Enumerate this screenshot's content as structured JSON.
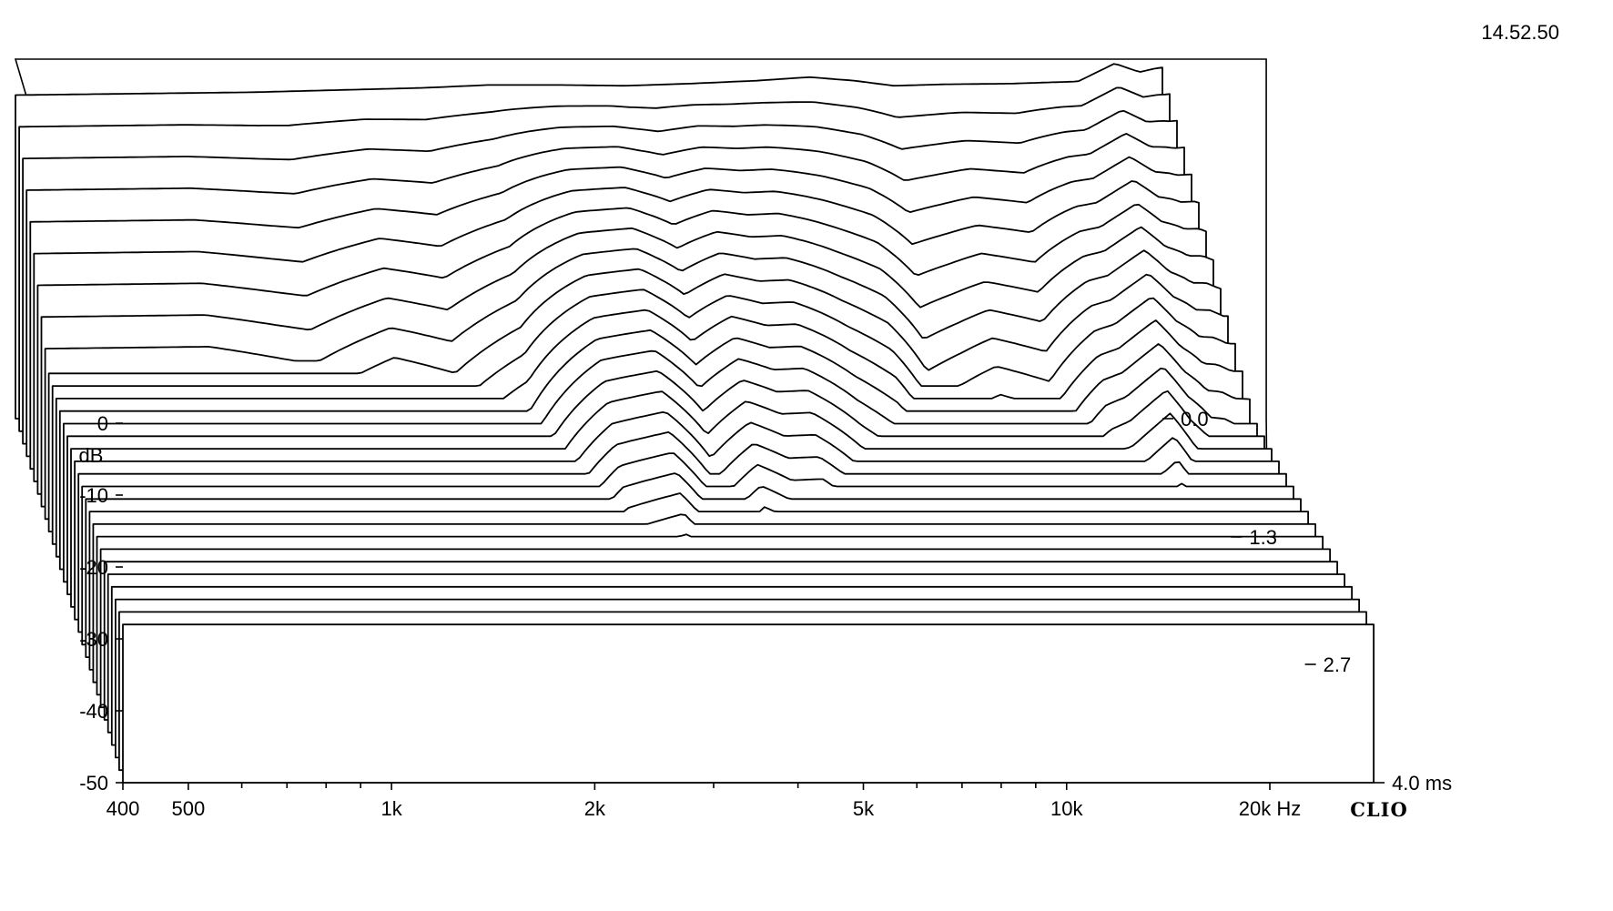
{
  "timestamp": "14.52.50",
  "brand": "CLIO",
  "chart_data": {
    "type": "waterfall",
    "x_axis": {
      "scale": "log",
      "range": [
        400,
        20000
      ],
      "tick_labels": [
        {
          "value": 400,
          "label": "400"
        },
        {
          "value": 500,
          "label": "500"
        },
        {
          "value": 1000,
          "label": "1k"
        },
        {
          "value": 2000,
          "label": "2k"
        },
        {
          "value": 5000,
          "label": "5k"
        },
        {
          "value": 10000,
          "label": "10k"
        },
        {
          "value": 20000,
          "label": "20k Hz"
        }
      ],
      "minor_ticks": [
        600,
        700,
        800,
        900,
        3000,
        4000,
        6000,
        7000,
        8000,
        9000
      ]
    },
    "y_axis": {
      "label": "dB",
      "range": [
        -50,
        0
      ],
      "tick_labels": [
        {
          "value": 0,
          "label": "0"
        },
        {
          "value": -10,
          "label": "-10"
        },
        {
          "value": -20,
          "label": "-20"
        },
        {
          "value": -30,
          "label": "-30"
        },
        {
          "value": -40,
          "label": "-40"
        },
        {
          "value": -50,
          "label": "-50"
        }
      ]
    },
    "z_axis": {
      "range": [
        0,
        4.0
      ],
      "unit": "ms",
      "tick_labels": [
        {
          "value": 0.0,
          "label": "0.0"
        },
        {
          "value": 1.3,
          "label": "1.3"
        },
        {
          "value": 2.7,
          "label": "2.7"
        },
        {
          "value": 4.0,
          "label": "4.0  ms"
        }
      ]
    },
    "slices": 30,
    "floor_db": -28,
    "base_response": [
      [
        400,
        -5.0
      ],
      [
        600,
        -4.8
      ],
      [
        900,
        -4.6
      ],
      [
        1200,
        -4.3
      ],
      [
        1600,
        -4.0
      ],
      [
        2000,
        -3.6
      ],
      [
        2600,
        -3.6
      ],
      [
        3200,
        -3.7
      ],
      [
        4000,
        -3.4
      ],
      [
        5000,
        -3.0
      ],
      [
        6000,
        -2.5
      ],
      [
        7000,
        -3.0
      ],
      [
        8000,
        -3.7
      ],
      [
        9500,
        -3.5
      ],
      [
        12000,
        -3.4
      ],
      [
        15000,
        -3.1
      ],
      [
        17000,
        -0.6
      ],
      [
        18500,
        -1.8
      ],
      [
        19500,
        -1.3
      ],
      [
        21000,
        -0.9
      ],
      [
        22000,
        -1.4
      ],
      [
        24000,
        -0.7
      ],
      [
        26000,
        -1.7
      ],
      [
        28500,
        -2.6
      ]
    ],
    "decay_ms": [
      [
        400,
        0.45
      ],
      [
        700,
        0.45
      ],
      [
        1000,
        0.4
      ],
      [
        1300,
        0.5
      ],
      [
        1600,
        0.45
      ],
      [
        2000,
        0.6
      ],
      [
        2500,
        1.0
      ],
      [
        3000,
        1.1
      ],
      [
        3500,
        0.8
      ],
      [
        4000,
        1.0
      ],
      [
        4500,
        0.9
      ],
      [
        5000,
        0.9
      ],
      [
        6000,
        0.7
      ],
      [
        7000,
        0.6
      ],
      [
        8000,
        0.45
      ],
      [
        9000,
        0.5
      ],
      [
        10000,
        0.55
      ],
      [
        12000,
        0.5
      ],
      [
        14000,
        0.7
      ],
      [
        17000,
        0.8
      ],
      [
        20000,
        0.6
      ],
      [
        25000,
        0.55
      ],
      [
        28500,
        0.5
      ]
    ]
  }
}
